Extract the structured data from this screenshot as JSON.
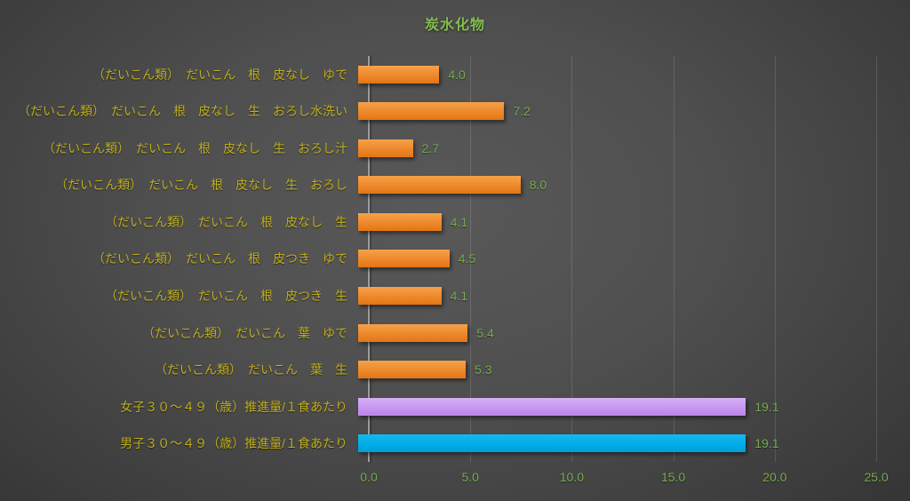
{
  "chart_data": {
    "type": "bar",
    "orientation": "horizontal",
    "title": "炭水化物",
    "categories": [
      "（だいこん類）　だいこん　根　皮なし　ゆで",
      "（だいこん類）　だいこん　根　皮なし　生　おろし水洗い",
      "（だいこん類）　だいこん　根　皮なし　生　おろし汁",
      "（だいこん類）　だいこん　根　皮なし　生　おろし",
      "（だいこん類）　だいこん　根　皮なし　生",
      "（だいこん類）　だいこん　根　皮つき　ゆで",
      "（だいこん類）　だいこん　根　皮つき　生",
      "（だいこん類）　だいこん　葉　ゆで",
      "（だいこん類）　だいこん　葉　生",
      "女子３０～４９（歳）推進量/１食あたり",
      "男子３０～４９（歳）推進量/１食あたり"
    ],
    "values": [
      4.0,
      7.2,
      2.7,
      8.0,
      4.1,
      4.5,
      4.1,
      5.4,
      5.3,
      19.1,
      19.1
    ],
    "value_labels": [
      "4.0",
      "7.2",
      "2.7",
      "8.0",
      "4.1",
      "4.5",
      "4.1",
      "5.4",
      "5.3",
      "19.1",
      "19.1"
    ],
    "bar_color_keys": [
      "orange",
      "orange",
      "orange",
      "orange",
      "orange",
      "orange",
      "orange",
      "orange",
      "orange",
      "purple",
      "blue"
    ],
    "xlim": [
      0,
      25
    ],
    "x_tick_values": [
      0,
      5,
      10,
      15,
      20,
      25
    ],
    "x_tick_labels": [
      "0.0",
      "5.0",
      "10.0",
      "15.0",
      "20.0",
      "25.0"
    ],
    "grid": true,
    "legend": "none",
    "colors": {
      "title_green": "#84BE50",
      "value_green": "#76AC4D",
      "tick_green": "#76AC4D",
      "category_yellow": "#BFAE1C",
      "bar_orange": "#ED7D31",
      "bar_purple": "#C897F2",
      "bar_blue": "#00ACE8",
      "axis_line": "#9D9D9D"
    }
  }
}
